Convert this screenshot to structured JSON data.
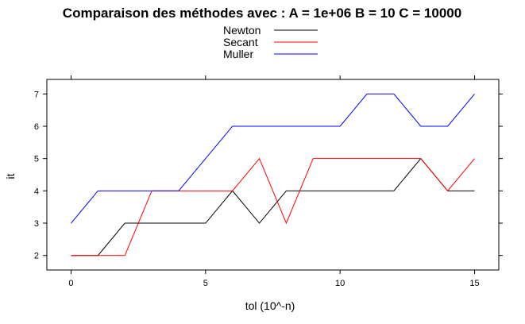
{
  "chart_data": {
    "type": "line",
    "title": "Comparaison des méthodes avec : A =  1e+06 B =  10 C =  10000",
    "xlabel": "tol (10^-n)",
    "ylabel": "it",
    "x": [
      0,
      1,
      2,
      3,
      4,
      5,
      6,
      7,
      8,
      9,
      10,
      11,
      12,
      13,
      14,
      15
    ],
    "xlim": [
      -0.9,
      15.9
    ],
    "ylim": [
      1.55,
      7.45
    ],
    "xticks": [
      0,
      5,
      10,
      15
    ],
    "yticks": [
      2,
      3,
      4,
      5,
      6,
      7
    ],
    "grid": false,
    "legend_position": "top",
    "series": [
      {
        "name": "Newton",
        "color": "#000000",
        "values": [
          2,
          2,
          3,
          3,
          3,
          3,
          4,
          3,
          4,
          4,
          4,
          4,
          4,
          5,
          4,
          4
        ]
      },
      {
        "name": "Secant",
        "color": "#ff0000",
        "values": [
          2,
          2,
          2,
          4,
          4,
          4,
          4,
          5,
          3,
          5,
          5,
          5,
          5,
          5,
          4,
          5
        ]
      },
      {
        "name": "Muller",
        "color": "#0000ff",
        "values": [
          3,
          4,
          4,
          4,
          4,
          5,
          6,
          6,
          6,
          6,
          6,
          7,
          7,
          6,
          6,
          7
        ]
      }
    ]
  }
}
